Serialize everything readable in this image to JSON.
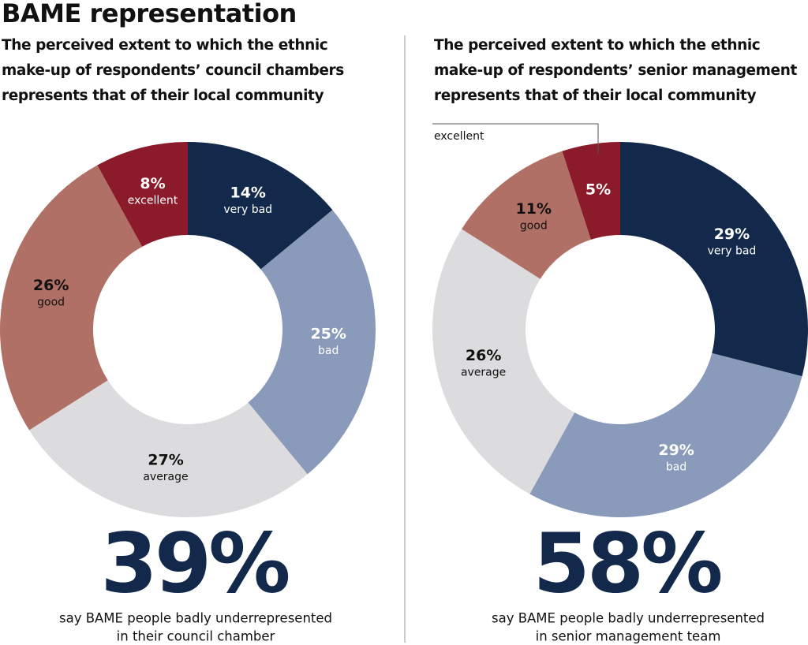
{
  "title": "BAME representation",
  "chart_data": [
    {
      "type": "donut",
      "title": "The perceived extent to which the ethnic make-up of respondents’ council chambers represents that of their local community",
      "categories": [
        "very bad",
        "bad",
        "average",
        "good",
        "excellent"
      ],
      "values": [
        14,
        25,
        27,
        26,
        8
      ],
      "value_labels": [
        "14%",
        "25%",
        "27%",
        "26%",
        "8%"
      ],
      "colors": [
        "#13294b",
        "#8a9aba",
        "#dcdcde",
        "#b07066",
        "#8b1a2a"
      ],
      "label_colors": [
        "#ffffff",
        "#ffffff",
        "#111111",
        "#111111",
        "#ffffff"
      ],
      "headline": {
        "value": 39,
        "label": "39%"
      },
      "caption": [
        "say BAME people badly underrepresented",
        "in their council chamber"
      ]
    },
    {
      "type": "donut",
      "title": "The perceived extent to which the ethnic make-up of respondents’ senior management represents that of their local community",
      "categories": [
        "very bad",
        "bad",
        "average",
        "good",
        "excellent"
      ],
      "values": [
        29,
        29,
        26,
        11,
        5
      ],
      "value_labels": [
        "29%",
        "29%",
        "26%",
        "11%",
        "5%"
      ],
      "colors": [
        "#13294b",
        "#8a9aba",
        "#dcdcde",
        "#b07066",
        "#8b1a2a"
      ],
      "label_colors": [
        "#ffffff",
        "#ffffff",
        "#111111",
        "#111111",
        "#ffffff"
      ],
      "headline": {
        "value": 58,
        "label": "58%"
      },
      "caption": [
        "say BAME people badly underrepresented",
        "in senior management team"
      ]
    }
  ]
}
